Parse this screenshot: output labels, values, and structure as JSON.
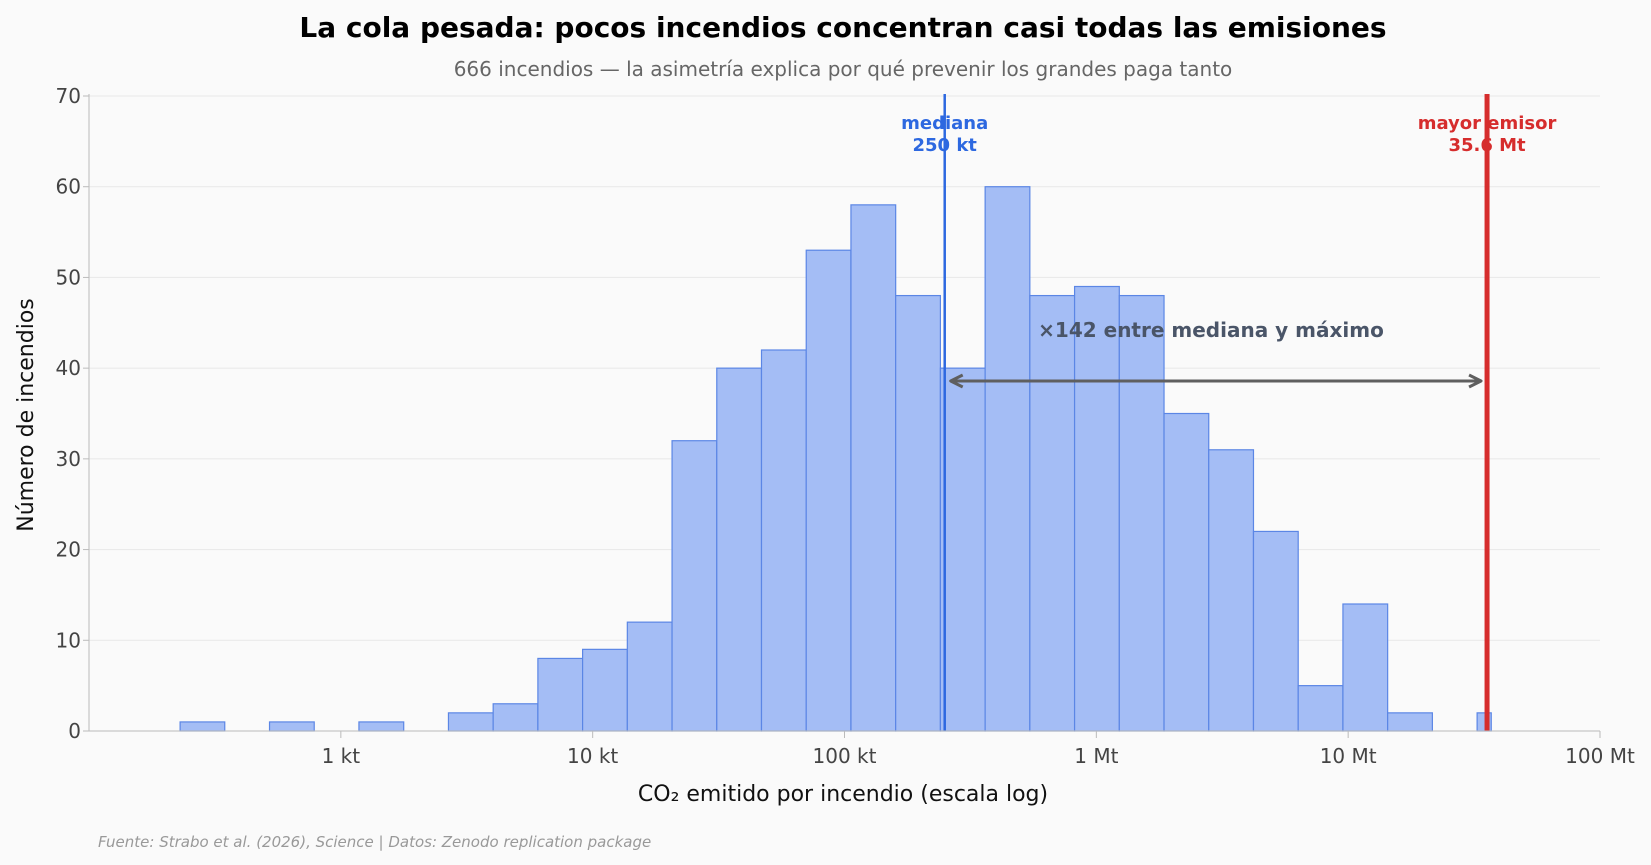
{
  "chart_data": {
    "type": "bar",
    "title": "La cola pesada: pocos incendios concentran casi todas las emisiones",
    "subtitle": "666 incendios — la asimetría explica por qué prevenir los grandes paga tanto",
    "xlabel": "CO₂ emitido por incendio (escala log)",
    "ylabel": "Número de incendios",
    "x_scale": "log",
    "x_unit": "kt",
    "xlim": [
      100,
      100000000
    ],
    "ylim": [
      0,
      70
    ],
    "y_ticks": [
      0,
      10,
      20,
      30,
      40,
      50,
      60,
      70
    ],
    "x_ticks": [
      {
        "value": 1000,
        "label": "1 kt"
      },
      {
        "value": 10000,
        "label": "10 kt"
      },
      {
        "value": 100000,
        "label": "100 kt"
      },
      {
        "value": 1000000,
        "label": "1 Mt"
      },
      {
        "value": 10000000,
        "label": "10 Mt"
      },
      {
        "value": 100000000,
        "label": "100 Mt"
      }
    ],
    "grid": "horizontal",
    "bin_edges": [
      230,
      346,
      521,
      784,
      1180,
      1777,
      2675,
      4026,
      6060,
      9121,
      13729,
      20665,
      31104,
      46819,
      70473,
      106077,
      159668,
      240335,
      361755,
      544520,
      819620,
      1233709,
      1856997,
      2795195,
      4207367,
      6333004,
      9532566,
      14348560,
      21597649,
      32509023,
      37000000
    ],
    "counts": [
      1,
      0,
      1,
      0,
      1,
      0,
      2,
      3,
      8,
      9,
      12,
      32,
      40,
      42,
      53,
      58,
      48,
      40,
      60,
      48,
      49,
      48,
      35,
      31,
      22,
      5,
      14,
      2,
      0,
      2
    ],
    "bar_color": "#a4bdf5",
    "bar_edge_color": "#5b86e5",
    "median": {
      "value": 250000,
      "label_line1": "mediana",
      "label_line2": "250 kt",
      "color": "#2d68e0"
    },
    "max": {
      "value": 35600000,
      "label_line1": "mayor emisor",
      "label_line2": "35.6 Mt",
      "color": "#d62d2d"
    },
    "ratio_annotation": "×142 entre mediana y máximo",
    "source": "Fuente: Strabo et al. (2026), Science | Datos: Zenodo replication package"
  }
}
